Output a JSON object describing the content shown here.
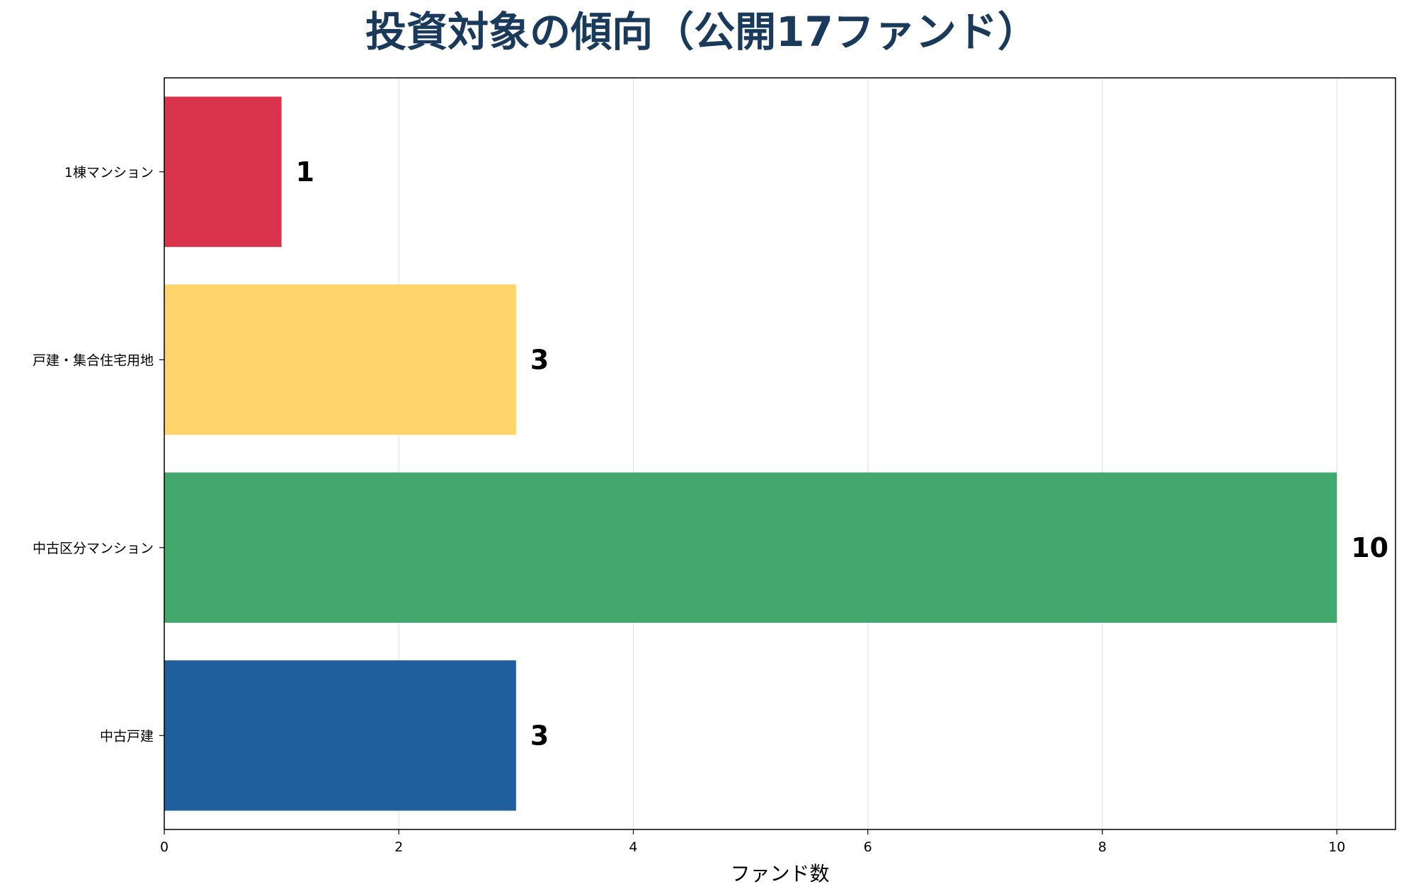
{
  "chart_data": {
    "type": "bar",
    "orientation": "horizontal",
    "title": "投資対象の傾向（公開17ファンド）",
    "xlabel": "ファンド数",
    "ylabel": "",
    "categories": [
      "中古戸建",
      "中古区分マンション",
      "戸建・集合住宅用地",
      "1棟マンション"
    ],
    "values": [
      3,
      10,
      3,
      1
    ],
    "colors": [
      "#1f5f9e",
      "#43a86e",
      "#fed46b",
      "#d9334e"
    ],
    "xlim": [
      0,
      10.5
    ],
    "xticks": [
      0,
      2,
      4,
      6,
      8,
      10
    ],
    "grid": "vertical",
    "title_color": "#1a3a5c"
  }
}
